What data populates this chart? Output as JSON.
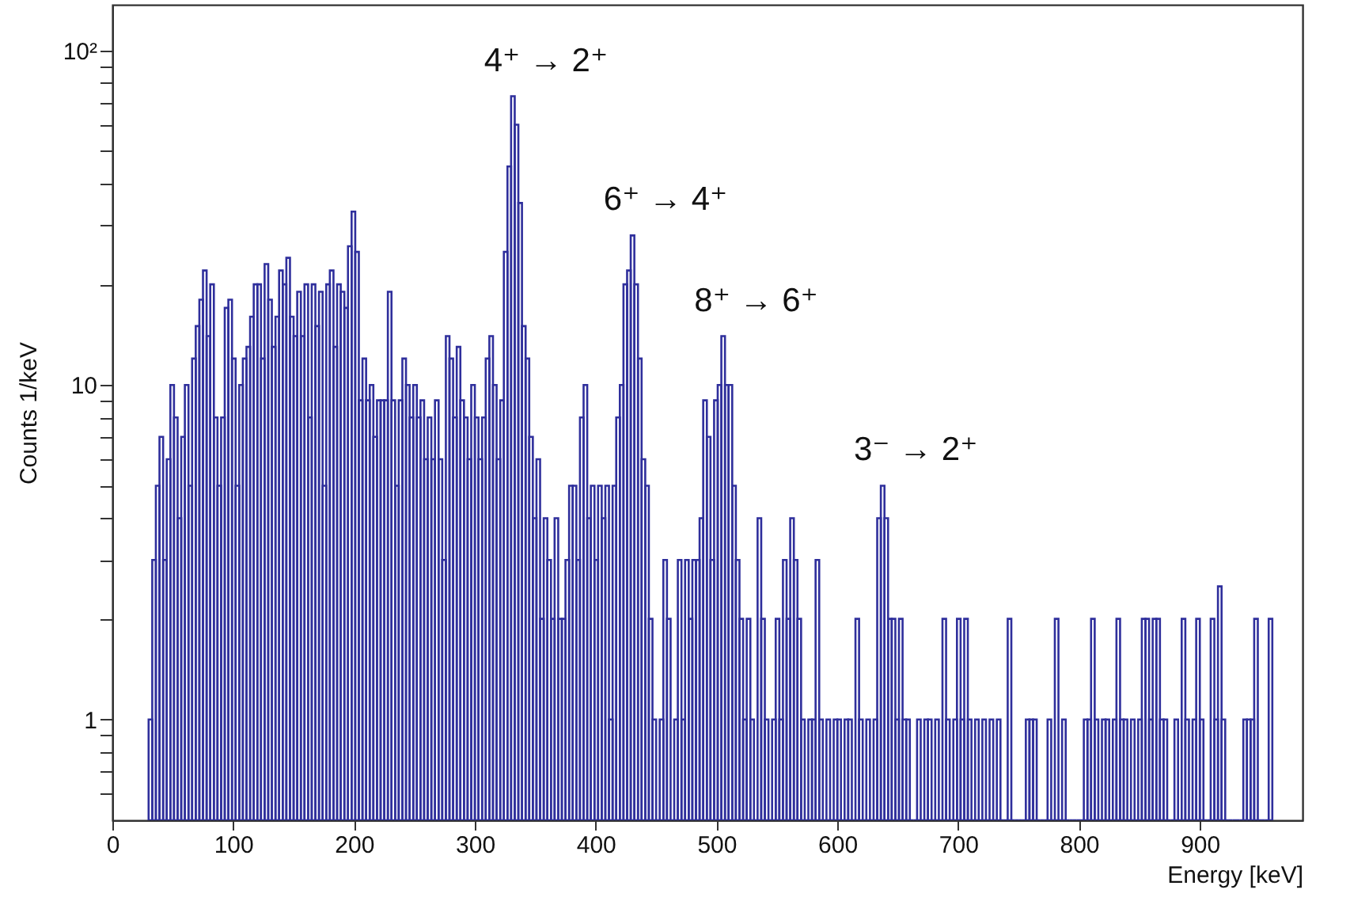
{
  "chart_data": {
    "type": "histogram",
    "xlabel": "Energy [keV]",
    "ylabel": "Counts 1/keV",
    "color": "#2f2f9c",
    "log": "y",
    "xlim": [
      0,
      985
    ],
    "xticks": [
      0,
      100,
      200,
      300,
      400,
      500,
      600,
      700,
      800,
      900
    ],
    "ylim": [
      0.5,
      137
    ],
    "yticks": [
      {
        "value": 0.6,
        "label": null
      },
      {
        "value": 0.7,
        "label": null
      },
      {
        "value": 0.8,
        "label": null
      },
      {
        "value": 0.9,
        "label": null
      },
      1,
      {
        "value": 2,
        "label": null
      },
      {
        "value": 3,
        "label": null
      },
      {
        "value": 4,
        "label": null
      },
      {
        "value": 5,
        "label": null
      },
      {
        "value": 6,
        "label": null
      },
      {
        "value": 7,
        "label": null
      },
      {
        "value": 8,
        "label": null
      },
      {
        "value": 9,
        "label": null
      },
      10,
      {
        "value": 20,
        "label": null
      },
      {
        "value": 30,
        "label": null
      },
      {
        "value": 40,
        "label": null
      },
      {
        "value": 50,
        "label": null
      },
      {
        "value": 60,
        "label": null
      },
      {
        "value": 70,
        "label": null
      },
      {
        "value": 80,
        "label": null
      },
      {
        "value": 90,
        "label": null
      },
      {
        "value": 100,
        "label": "10²"
      }
    ],
    "annotations": [
      {
        "text": "4⁺ → 2⁺",
        "x": 330,
        "y": 73
      },
      {
        "text": "6⁺ → 4⁺",
        "x": 429,
        "y": 28
      },
      {
        "text": "8⁺ → 6⁺",
        "x": 504,
        "y": 14
      },
      {
        "text": "3⁻ → 2⁺",
        "x": 636,
        "y": 5
      }
    ],
    "bins": [
      30,
      33,
      36,
      39,
      42,
      45,
      48,
      51,
      54,
      57,
      60,
      63,
      66,
      69,
      72,
      75,
      78,
      81,
      84,
      87,
      90,
      93,
      96,
      99,
      102,
      105,
      108,
      111,
      114,
      117,
      120,
      123,
      126,
      129,
      132,
      135,
      138,
      141,
      144,
      147,
      150,
      153,
      156,
      159,
      162,
      165,
      168,
      171,
      174,
      177,
      180,
      183,
      186,
      189,
      192,
      195,
      198,
      201,
      204,
      207,
      210,
      213,
      216,
      219,
      222,
      225,
      228,
      231,
      234,
      237,
      240,
      243,
      246,
      249,
      252,
      255,
      258,
      261,
      264,
      267,
      270,
      273,
      276,
      279,
      282,
      285,
      288,
      291,
      294,
      297,
      300,
      303,
      306,
      309,
      312,
      315,
      318,
      321,
      324,
      327,
      330,
      333,
      336,
      339,
      342,
      345,
      348,
      351,
      354,
      357,
      360,
      363,
      366,
      369,
      372,
      375,
      378,
      381,
      384,
      387,
      390,
      393,
      396,
      399,
      402,
      405,
      408,
      411,
      414,
      417,
      420,
      423,
      426,
      429,
      432,
      435,
      438,
      441,
      444,
      447,
      450,
      453,
      456,
      459,
      462,
      465,
      468,
      471,
      474,
      477,
      480,
      483,
      486,
      489,
      492,
      495,
      498,
      501,
      504,
      507,
      510,
      513,
      516,
      519,
      522,
      525,
      528,
      531,
      534,
      537,
      540,
      543,
      546,
      549,
      552,
      555,
      558,
      561,
      564,
      567,
      570,
      573,
      576,
      579,
      582,
      585,
      588,
      591,
      594,
      597,
      600,
      603,
      606,
      609,
      612,
      615,
      618,
      621,
      624,
      627,
      630,
      633,
      636,
      639,
      642,
      645,
      648,
      651,
      654,
      657,
      660,
      663,
      666,
      669,
      672,
      675,
      678,
      681,
      684,
      687,
      690,
      693,
      696,
      699,
      702,
      705,
      708,
      711,
      714,
      717,
      720,
      723,
      726,
      729,
      732,
      735,
      738,
      741,
      744,
      747,
      750,
      753,
      756,
      759,
      762,
      765,
      768,
      771,
      774,
      777,
      780,
      783,
      786,
      789,
      792,
      795,
      798,
      801,
      804,
      807,
      810,
      813,
      816,
      819,
      822,
      825,
      828,
      831,
      834,
      837,
      840,
      843,
      846,
      849,
      852,
      855,
      858,
      861,
      864,
      867,
      870,
      873,
      876,
      879,
      882,
      885,
      888,
      891,
      894,
      897,
      900,
      903,
      906,
      909,
      912,
      915,
      918,
      921,
      924,
      927,
      930,
      933,
      936,
      939,
      942,
      945,
      948,
      951,
      954,
      957,
      960
    ],
    "values": [
      1,
      3,
      5,
      7,
      3,
      6,
      10,
      8,
      4,
      7,
      10,
      5,
      12,
      15,
      18,
      22,
      14,
      20,
      8,
      5,
      8,
      17,
      18,
      12,
      5,
      10,
      12,
      13,
      16,
      20,
      20,
      12,
      23,
      18,
      13,
      16,
      22,
      20,
      24,
      16,
      14,
      19,
      14,
      20,
      8,
      20,
      15,
      19,
      5,
      20,
      22,
      13,
      20,
      19,
      17,
      26,
      33,
      25,
      9,
      12,
      9,
      10,
      7,
      9,
      9,
      9,
      19,
      9,
      5,
      9,
      12,
      10,
      8,
      10,
      8,
      9,
      6,
      8,
      6,
      9,
      6,
      3,
      14,
      12,
      8,
      13,
      9,
      8,
      6,
      10,
      8,
      6,
      8,
      12,
      14,
      10,
      6,
      9,
      25,
      45,
      73,
      60,
      35,
      15,
      12,
      7,
      4,
      6,
      2,
      4,
      3,
      2,
      4,
      2,
      2,
      3,
      5,
      5,
      3,
      8,
      10,
      4,
      5,
      3,
      5,
      4,
      5,
      1,
      5,
      8,
      10,
      20,
      22,
      28,
      20,
      12,
      6,
      5,
      2,
      1,
      null,
      1,
      3,
      2,
      null,
      1,
      3,
      1,
      3,
      2,
      3,
      3,
      4,
      9,
      7,
      3,
      9,
      10,
      14,
      10,
      10,
      5,
      3,
      2,
      1,
      2,
      1,
      null,
      4,
      2,
      1,
      null,
      1,
      2,
      1,
      3,
      2,
      4,
      3,
      2,
      1,
      null,
      1,
      1,
      3,
      1,
      null,
      1,
      null,
      1,
      1,
      null,
      1,
      1,
      null,
      2,
      1,
      null,
      1,
      null,
      1,
      4,
      5,
      4,
      2,
      2,
      1,
      2,
      1,
      1,
      null,
      null,
      1,
      null,
      1,
      1,
      null,
      1,
      null,
      2,
      1,
      null,
      1,
      2,
      1,
      2,
      1,
      null,
      1,
      null,
      1,
      null,
      1,
      null,
      1,
      null,
      null,
      2,
      null,
      null,
      null,
      null,
      1,
      1,
      1,
      null,
      null,
      null,
      1,
      null,
      2,
      null,
      1,
      null,
      null,
      null,
      null,
      null,
      1,
      1,
      2,
      1,
      null,
      1,
      1,
      null,
      1,
      2,
      1,
      1,
      null,
      1,
      null,
      1,
      2,
      2,
      1,
      2,
      2,
      1,
      1,
      null,
      null,
      1,
      null,
      2,
      1,
      null,
      1,
      2,
      1,
      null,
      null,
      2,
      1,
      2.5,
      1,
      null,
      null,
      null,
      null,
      null,
      1,
      1,
      1,
      2,
      null,
      null,
      null,
      2
    ]
  }
}
